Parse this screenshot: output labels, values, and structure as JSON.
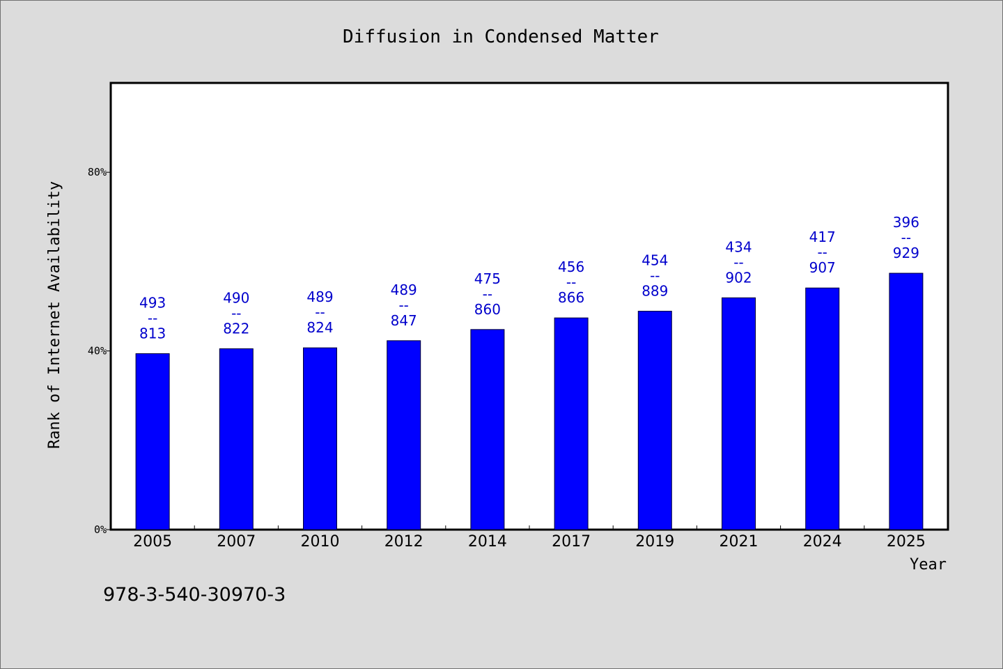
{
  "colors": {
    "bar": "#0000ff",
    "bar_edge": "#000033",
    "data_label": "#0000cc",
    "background": "#dcdcdc",
    "plot_background": "#ffffff"
  },
  "footnote": "978-3-540-30970-3",
  "chart_data": {
    "type": "bar",
    "title": "Diffusion in Condensed Matter",
    "xlabel": "Year",
    "ylabel": "Rank of Internet Availability",
    "categories": [
      "2005",
      "2007",
      "2010",
      "2012",
      "2014",
      "2017",
      "2019",
      "2021",
      "2024",
      "2025"
    ],
    "values": [
      39.4,
      40.5,
      40.7,
      42.3,
      44.8,
      47.4,
      48.9,
      51.9,
      54.1,
      57.4
    ],
    "data_labels": [
      [
        "493",
        "--",
        "813"
      ],
      [
        "490",
        "--",
        "822"
      ],
      [
        "489",
        "--",
        "824"
      ],
      [
        "489",
        "--",
        "847"
      ],
      [
        "475",
        "--",
        "860"
      ],
      [
        "456",
        "--",
        "866"
      ],
      [
        "454",
        "--",
        "889"
      ],
      [
        "434",
        "--",
        "902"
      ],
      [
        "417",
        "--",
        "907"
      ],
      [
        "396",
        "--",
        "929"
      ]
    ],
    "ylim": [
      0,
      100
    ],
    "yticks": [
      0,
      40,
      80
    ],
    "ytick_labels": [
      "0%",
      "40%",
      "80%"
    ],
    "grid": false,
    "legend": "none"
  }
}
